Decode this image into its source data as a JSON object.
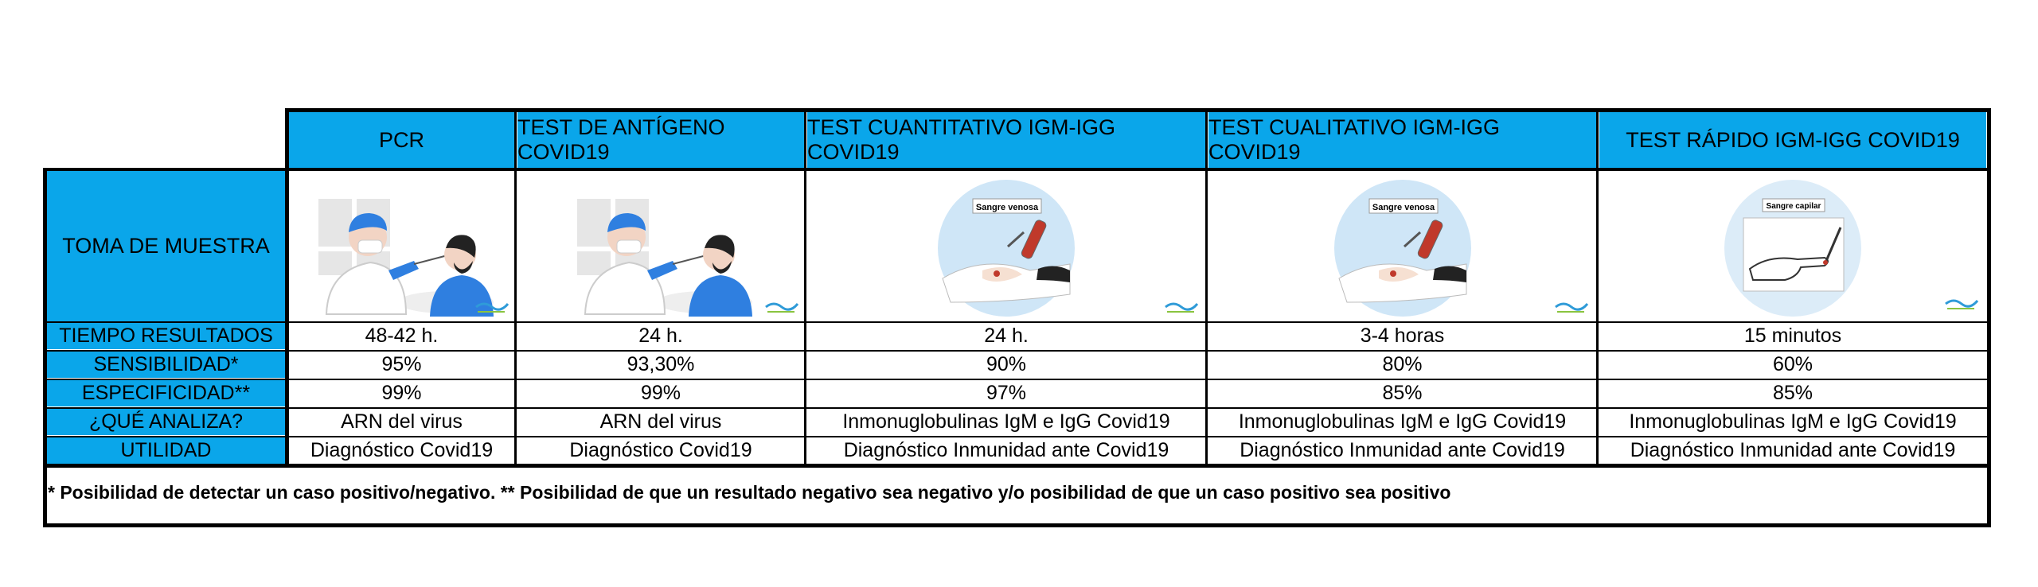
{
  "header": {
    "columns": [
      "PCR",
      "TEST DE ANTÍGENO COVID19",
      "TEST CUANTITATIVO IGM-IGG COVID19",
      "TEST CUALITATIVO IGM-IGG COVID19",
      "TEST RÁPIDO IGM-IGG COVID19"
    ]
  },
  "rows": {
    "toma": {
      "label": "TOMA DE MUESTRA",
      "images": [
        "nasal-swab-illustration",
        "nasal-swab-illustration",
        "venous-blood-illustration",
        "venous-blood-illustration",
        "capillary-blood-illustration"
      ],
      "image_captions": [
        "",
        "",
        "Sangre venosa",
        "Sangre venosa",
        "Sangre capilar"
      ]
    },
    "tiempo": {
      "label": "TIEMPO RESULTADOS",
      "values": [
        "48-42 h.",
        "24 h.",
        "24 h.",
        "3-4 horas",
        "15 minutos"
      ]
    },
    "sensibilidad": {
      "label": "SENSIBILIDAD*",
      "values": [
        "95%",
        "93,30%",
        "90%",
        "80%",
        "60%"
      ]
    },
    "especificidad": {
      "label": "ESPECIFICIDAD**",
      "values": [
        "99%",
        "99%",
        "97%",
        "85%",
        "85%"
      ]
    },
    "analiza": {
      "label": "¿QUÉ ANALIZA?",
      "values": [
        "ARN del virus",
        "ARN del virus",
        "Inmonuglobulinas IgM e IgG Covid19",
        "Inmonuglobulinas IgM e IgG Covid19",
        "Inmonuglobulinas IgM e IgG Covid19"
      ]
    },
    "utilidad": {
      "label": "UTILIDAD",
      "values": [
        "Diagnóstico Covid19",
        "Diagnóstico Covid19",
        "Diagnóstico Inmunidad ante Covid19",
        "Diagnóstico Inmunidad ante Covid19",
        "Diagnóstico Inmunidad ante Covid19"
      ]
    }
  },
  "footnote": "* Posibilidad de detectar un caso positivo/negativo.  ** Posibilidad de que un resultado negativo sea negativo y/o posibilidad de que un caso positivo sea positivo",
  "colors": {
    "header_bg": "#0AA6EA",
    "border": "#000000",
    "accent_blue": "#2F7FE0"
  }
}
